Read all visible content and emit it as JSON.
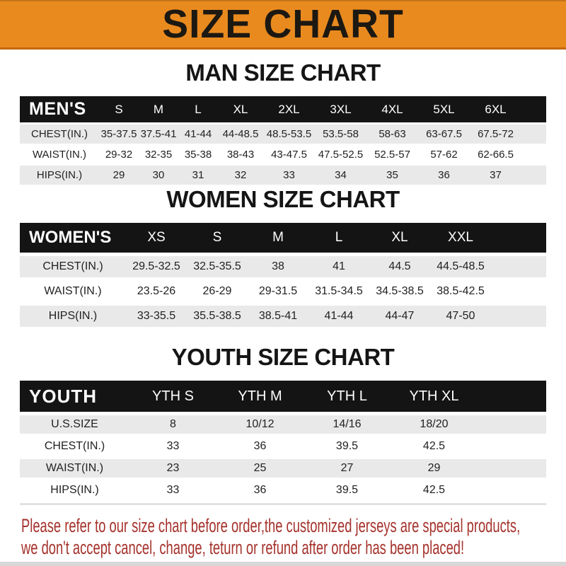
{
  "banner": {
    "title": "SIZE CHART"
  },
  "sections": [
    {
      "title": "MAN SIZE CHART",
      "table": {
        "name": "MEN'S",
        "columns": [
          "S",
          "M",
          "L",
          "XL",
          "2XL",
          "3XL",
          "4XL",
          "5XL",
          "6XL"
        ],
        "rows": [
          {
            "label": "CHEST(IN.)",
            "values": [
              "35-37.5",
              "37.5-41",
              "41-44",
              "44-48.5",
              "48.5-53.5",
              "53.5-58",
              "58-63",
              "63-67.5",
              "67.5-72"
            ]
          },
          {
            "label": "WAIST(IN.)",
            "values": [
              "29-32",
              "32-35",
              "35-38",
              "38-43",
              "43-47.5",
              "47.5-52.5",
              "52.5-57",
              "57-62",
              "62-66.5"
            ]
          },
          {
            "label": "HIPS(IN.)",
            "values": [
              "29",
              "30",
              "31",
              "32",
              "33",
              "34",
              "35",
              "36",
              "37"
            ]
          }
        ]
      }
    },
    {
      "title": "WOMEN SIZE CHART",
      "table": {
        "name": "WOMEN'S",
        "columns": [
          "XS",
          "S",
          "M",
          "L",
          "XL",
          "XXL"
        ],
        "rows": [
          {
            "label": "CHEST(IN.)",
            "values": [
              "29.5-32.5",
              "32.5-35.5",
              "38",
              "41",
              "44.5",
              "44.5-48.5"
            ]
          },
          {
            "label": "WAIST(IN.)",
            "values": [
              "23.5-26",
              "26-29",
              "29-31.5",
              "31.5-34.5",
              "34.5-38.5",
              "38.5-42.5"
            ]
          },
          {
            "label": "HIPS(IN.)",
            "values": [
              "33-35.5",
              "35.5-38.5",
              "38.5-41",
              "41-44",
              "44-47",
              "47-50"
            ]
          }
        ]
      }
    },
    {
      "title": "YOUTH SIZE CHART",
      "table": {
        "name": "YOUTH",
        "columns": [
          "YTH S",
          "YTH M",
          "YTH L",
          "YTH XL"
        ],
        "rows": [
          {
            "label": "U.S.SIZE",
            "values": [
              "8",
              "10/12",
              "14/16",
              "18/20"
            ]
          },
          {
            "label": "CHEST(IN.)",
            "values": [
              "33",
              "36",
              "39.5",
              "42.5"
            ]
          },
          {
            "label": "WAIST(IN.)",
            "values": [
              "23",
              "25",
              "27",
              "29"
            ]
          },
          {
            "label": "HIPS(IN.)",
            "values": [
              "33",
              "36",
              "39.5",
              "42.5"
            ]
          }
        ]
      }
    }
  ],
  "footer": {
    "lines": [
      "Please refer to our size chart before order,the customized jerseys are special products,",
      "we don't accept cancel, change, teturn or refund after order has been placed!"
    ]
  },
  "colors": {
    "banner_orange": "#E98A1F",
    "banner_border": "#C4680F",
    "header_black": "#141414",
    "row_gray": "#E9E9E9",
    "notice_red": "#A5322C"
  }
}
